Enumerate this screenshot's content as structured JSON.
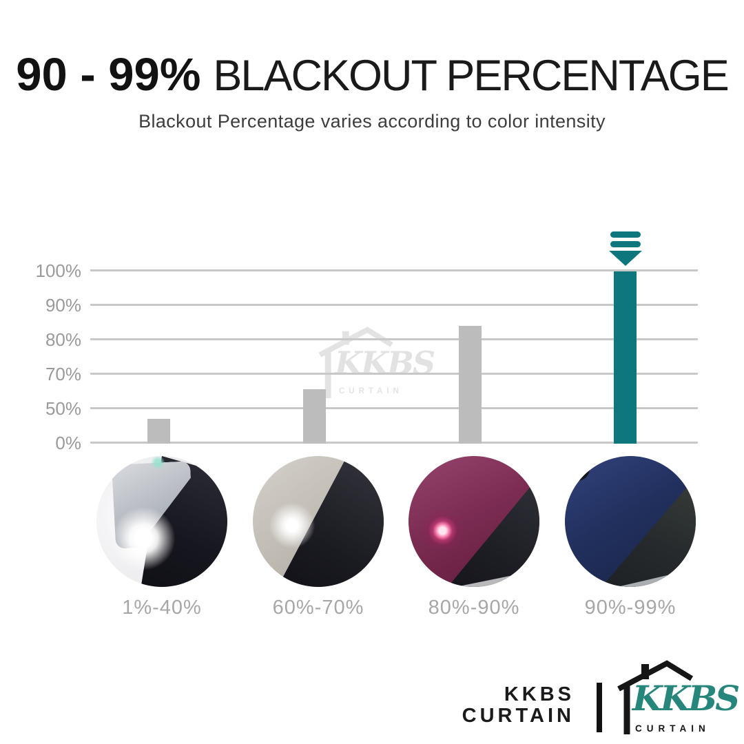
{
  "header": {
    "title_strong": "90 - 99%",
    "title_rest": "BLACKOUT PERCENTAGE",
    "subtitle": "Blackout Percentage varies according to color intensity"
  },
  "chart_data": {
    "type": "bar",
    "title": "90 - 99% blackout percentage by curtain color intensity",
    "categories": [
      "1%-40%",
      "60%-70%",
      "80%-90%",
      "90%-99%"
    ],
    "values": [
      34,
      61,
      85,
      100
    ],
    "y_tick_labels": [
      "100%",
      "90%",
      "80%",
      "70%",
      "50%",
      "0%"
    ],
    "y_tick_values": [
      100,
      90,
      80,
      70,
      50,
      0
    ],
    "axis_note": "y ticks evenly spaced although values are nonlinear",
    "grid": true,
    "legend_position": "none",
    "highlight_index": 3,
    "bar_height_fractions": [
      0.144,
      0.316,
      0.684,
      1.0
    ],
    "colors": {
      "bar": "#bcbcbc",
      "highlight": "#0e777d",
      "grid": "#c8c8c8",
      "tick_text": "#9a9a9a",
      "category_text": "#a7a7a7"
    }
  },
  "arrow_icon": {
    "meaning": "points to highlighted 90%-99% bar",
    "color": "#0e777d"
  },
  "swatches": [
    {
      "label": "1%-40%",
      "fabric": "light silver-grey sheer fabric",
      "light_spot": "bright white light passes through"
    },
    {
      "label": "60%-70%",
      "fabric": "beige-grey dimout fabric",
      "light_spot": "dim white glow"
    },
    {
      "label": "80%-90%",
      "fabric": "maroon blackout fabric",
      "light_spot": "faint pink dot"
    },
    {
      "label": "90%-99%",
      "fabric": "navy blue blackout fabric",
      "light_spot": "none"
    }
  ],
  "watermark": {
    "script": "KKBS",
    "sub": "CURTAIN"
  },
  "footer": {
    "brand_top": "KKBS",
    "brand_bottom": "CURTAIN",
    "logo_script": "KKBS",
    "logo_sub": "CURTAIN",
    "teal": "#27867c"
  }
}
